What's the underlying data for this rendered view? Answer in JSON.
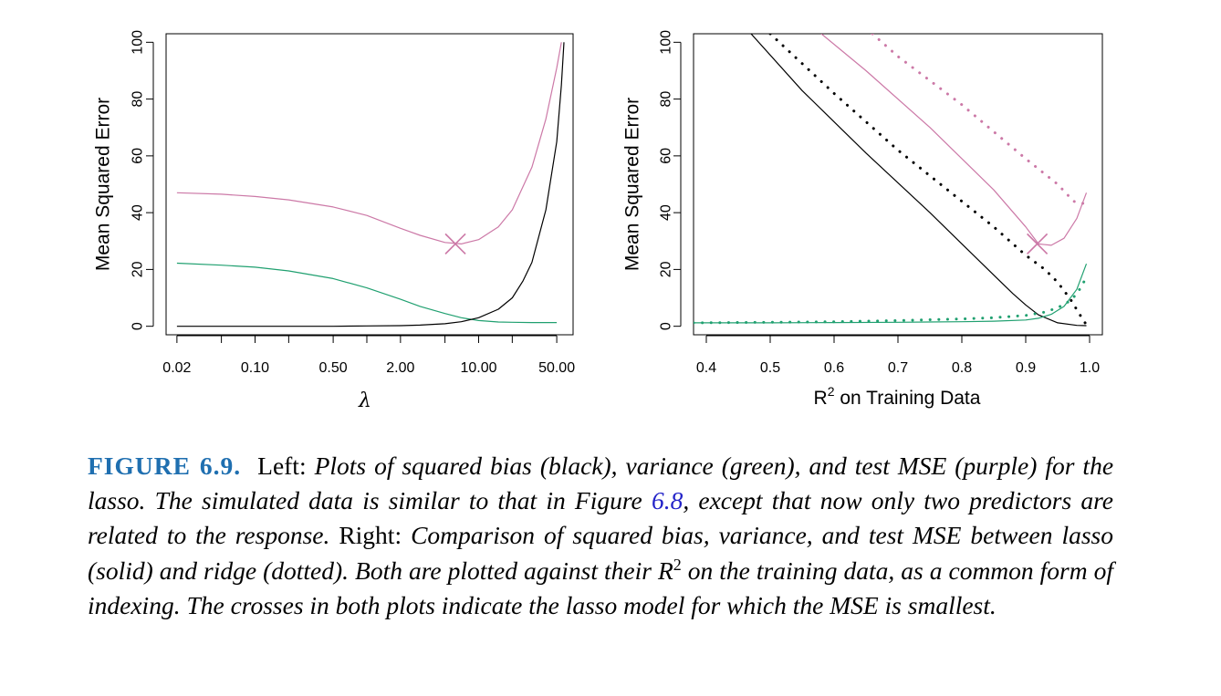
{
  "chart_data": [
    {
      "type": "line",
      "ylabel": "Mean Squared Error",
      "xlabel": "λ",
      "xscale": "log",
      "xlim": [
        0.016,
        70
      ],
      "ylim": [
        -3,
        103
      ],
      "x_ticks": [
        0.02,
        0.05,
        0.1,
        0.2,
        0.5,
        1,
        2,
        5,
        10,
        20,
        50
      ],
      "x_tick_labels": [
        "0.02",
        "0.10",
        "0.50",
        "2.00",
        "10.00",
        "50.00"
      ],
      "x_tick_label_values": [
        0.02,
        0.1,
        0.5,
        2,
        10,
        50
      ],
      "y_ticks": [
        0,
        20,
        40,
        60,
        80,
        100
      ],
      "y_tick_labels": [
        "0",
        "20",
        "40",
        "60",
        "80",
        "100"
      ],
      "series": [
        {
          "color": "#cc79a7",
          "style": "solid",
          "x": [
            0.02,
            0.05,
            0.1,
            0.2,
            0.5,
            1,
            2,
            3,
            5,
            7,
            10,
            15,
            20,
            30,
            40,
            50,
            55
          ],
          "y": [
            47,
            46.5,
            45.7,
            44.5,
            42,
            39,
            34.5,
            32,
            29.5,
            29,
            30.5,
            35,
            41,
            56,
            73,
            91,
            100
          ]
        },
        {
          "color": "#20a070",
          "style": "solid",
          "x": [
            0.02,
            0.05,
            0.1,
            0.2,
            0.5,
            1,
            2,
            3,
            5,
            7,
            10,
            15,
            20,
            30,
            50
          ],
          "y": [
            22.2,
            21.5,
            20.8,
            19.5,
            16.8,
            13.5,
            9.5,
            7,
            4.5,
            3,
            2,
            1.5,
            1.4,
            1.3,
            1.3
          ]
        },
        {
          "color": "#000000",
          "style": "solid",
          "x": [
            0.02,
            0.1,
            0.5,
            1,
            2,
            3,
            5,
            7,
            10,
            15,
            20,
            25,
            30,
            40,
            50,
            55,
            58
          ],
          "y": [
            0,
            0,
            0,
            0.1,
            0.2,
            0.4,
            0.9,
            1.6,
            3,
            6,
            10,
            16,
            22.5,
            41,
            65,
            85,
            100
          ]
        }
      ],
      "marker": {
        "shape": "cross",
        "color": "#cc79a7",
        "x": 6.2,
        "y": 29
      }
    },
    {
      "type": "line",
      "ylabel": "Mean Squared Error",
      "xlabel": "R² on Training Data",
      "xlim": [
        0.38,
        1.02
      ],
      "ylim": [
        -3,
        103
      ],
      "x_ticks": [
        0.4,
        0.5,
        0.6,
        0.7,
        0.8,
        0.9,
        1.0
      ],
      "x_tick_labels": [
        "0.4",
        "0.5",
        "0.6",
        "0.7",
        "0.8",
        "0.9",
        "1.0"
      ],
      "y_ticks": [
        0,
        20,
        40,
        60,
        80,
        100
      ],
      "y_tick_labels": [
        "0",
        "20",
        "40",
        "60",
        "80",
        "100"
      ],
      "series": [
        {
          "color": "#000000",
          "style": "solid",
          "x": [
            0.47,
            0.55,
            0.65,
            0.75,
            0.85,
            0.88,
            0.9,
            0.92,
            0.95,
            0.98,
            0.995
          ],
          "y": [
            103,
            83,
            61,
            40,
            18,
            11.5,
            7.5,
            4,
            1.2,
            0.3,
            0.2
          ]
        },
        {
          "color": "#cc79a7",
          "style": "solid",
          "x": [
            0.58,
            0.65,
            0.75,
            0.85,
            0.9,
            0.92,
            0.94,
            0.96,
            0.98,
            0.995
          ],
          "y": [
            103,
            90,
            70,
            48,
            35,
            29,
            28.5,
            31,
            38,
            47
          ]
        },
        {
          "color": "#20a070",
          "style": "solid",
          "x": [
            0.38,
            0.5,
            0.6,
            0.7,
            0.8,
            0.85,
            0.9,
            0.92,
            0.94,
            0.96,
            0.98,
            0.995
          ],
          "y": [
            1.2,
            1.2,
            1.3,
            1.4,
            1.6,
            1.8,
            2.2,
            2.8,
            4.2,
            7,
            13,
            22
          ]
        },
        {
          "color": "#000000",
          "style": "dotted",
          "x": [
            0.5,
            0.6,
            0.7,
            0.8,
            0.85,
            0.9,
            0.93,
            0.95,
            0.97,
            0.985,
            0.995
          ],
          "y": [
            103,
            82,
            62,
            44,
            35,
            25,
            20,
            15.5,
            9.5,
            4,
            0.5
          ]
        },
        {
          "color": "#cc79a7",
          "style": "dotted",
          "x": [
            0.66,
            0.7,
            0.8,
            0.9,
            0.95,
            0.975,
            0.995
          ],
          "y": [
            103,
            95,
            78,
            59,
            50,
            44,
            43
          ]
        },
        {
          "color": "#20a070",
          "style": "dotted",
          "x": [
            0.38,
            0.5,
            0.6,
            0.7,
            0.8,
            0.85,
            0.9,
            0.93,
            0.95,
            0.97,
            0.98,
            0.99,
            0.995
          ],
          "y": [
            1.2,
            1.4,
            1.6,
            2,
            2.6,
            3,
            3.8,
            5,
            6.5,
            9,
            11.5,
            15,
            18
          ]
        }
      ],
      "marker": {
        "shape": "cross",
        "color": "#cc79a7",
        "x": 0.918,
        "y": 29
      }
    }
  ],
  "caption": {
    "label": "FIGURE 6.9.",
    "left_word": "Left:",
    "left_text": "Plots of squared bias (black), variance (green), and test MSE (purple) for the lasso. The simulated data is similar to that in Figure",
    "ref": "6.8",
    "after_ref": ", except that now only two predictors are related to the response.",
    "right_word": "Right:",
    "right_text_1": "Comparison of squared bias, variance, and test MSE between lasso (solid) and ridge (dotted). Both are plotted against their",
    "r_symbol": "R",
    "r_sup": "2",
    "right_text_2": "on the training data, as a common form of indexing. The crosses in both plots indicate the lasso model for which the MSE is smallest."
  }
}
